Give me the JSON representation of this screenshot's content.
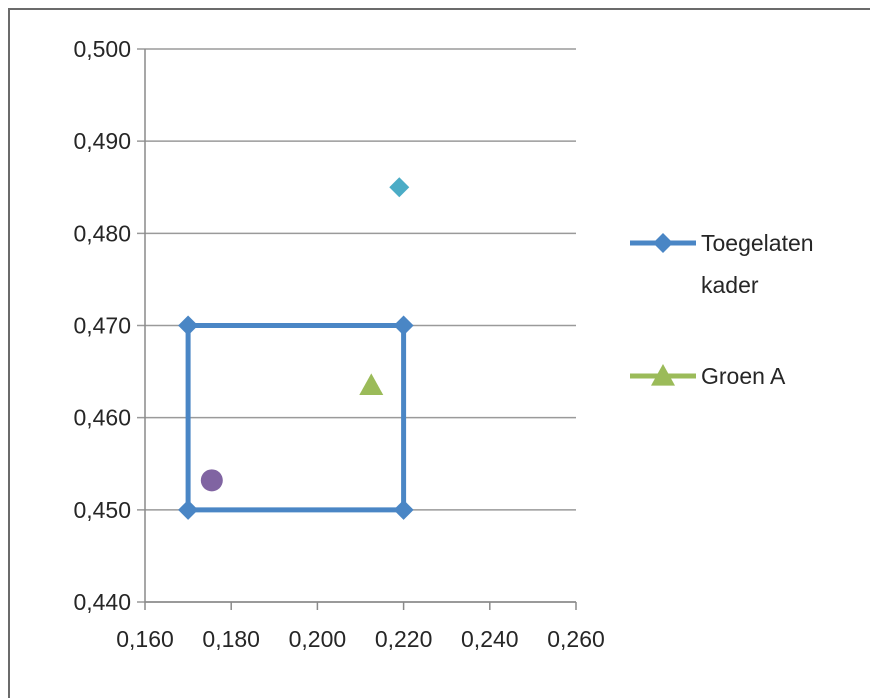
{
  "chart_data": {
    "type": "scatter",
    "title": "",
    "xlabel": "",
    "ylabel": "",
    "xlim": [
      0.16,
      0.26
    ],
    "ylim": [
      0.44,
      0.5
    ],
    "x_ticks": [
      "0,160",
      "0,180",
      "0,200",
      "0,220",
      "0,240",
      "0,260"
    ],
    "y_ticks": [
      "0,500",
      "0,490",
      "0,480",
      "0,470",
      "0,460",
      "0,450",
      "0,440"
    ],
    "grid": "horizontal",
    "legend_position": "right",
    "series": [
      {
        "name": "Toegelaten kader",
        "mode": "line+markers",
        "marker": "diamond",
        "color": "#4a86c5",
        "x": [
          0.17,
          0.22,
          0.22,
          0.17,
          0.17
        ],
        "y": [
          0.47,
          0.47,
          0.45,
          0.45,
          0.47
        ]
      },
      {
        "name": "Groen A",
        "mode": "markers",
        "marker": "triangle",
        "color": "#9bbb59",
        "x": [
          0.2125
        ],
        "y": [
          0.4635
        ]
      },
      {
        "mode": "markers",
        "marker": "diamond",
        "color": "#4bacc6",
        "x": [
          0.219
        ],
        "y": [
          0.485
        ]
      },
      {
        "mode": "markers",
        "marker": "circle",
        "color": "#8064a2",
        "x": [
          0.1755
        ],
        "y": [
          0.4532
        ]
      }
    ],
    "legend": [
      {
        "lines": [
          "Toegelaten",
          "kader"
        ],
        "marker": "diamond",
        "color": "#4a86c5"
      },
      {
        "lines": [
          "Groen A"
        ],
        "marker": "triangle",
        "color": "#9bbb59"
      }
    ]
  }
}
